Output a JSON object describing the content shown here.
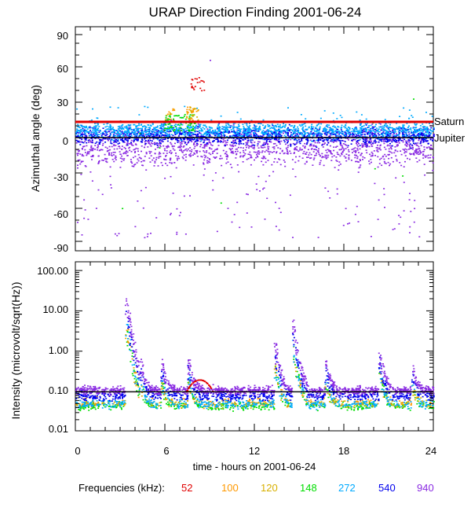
{
  "chart_data": [
    {
      "type": "scatter",
      "title": "URAP Direction Finding  2001-06-24",
      "ylabel": "Azimuthal angle (deg)",
      "ylim": [
        -92,
        95
      ],
      "yticks": [
        90,
        60,
        30,
        0,
        -30,
        -60,
        -90
      ],
      "xlim": [
        0,
        24
      ],
      "reference_lines": [
        {
          "name": "Saturn",
          "y": 15,
          "color": "#e00000"
        },
        {
          "name": "Jupiter",
          "y": 2.5,
          "color": "#000000"
        }
      ],
      "series_summary": [
        {
          "name": "52",
          "typical_range": [
            40,
            52
          ],
          "times": [
            7.8,
            8.6
          ]
        },
        {
          "name": "100",
          "typical_range": [
            15,
            25
          ],
          "times": [
            6.0,
            8.2
          ]
        },
        {
          "name": "120",
          "typical_range": [
            15,
            25
          ],
          "times": [
            6.0,
            8.2
          ]
        },
        {
          "name": "148",
          "typical_range": [
            5,
            18
          ],
          "times": [
            5.8,
            7.8
          ]
        },
        {
          "name": "272",
          "typical_range": [
            0,
            12
          ],
          "times": [
            0,
            24
          ]
        },
        {
          "name": "540",
          "typical_range": [
            -5,
            10
          ],
          "times": [
            0,
            24
          ]
        },
        {
          "name": "940",
          "typical_range": [
            -30,
            10
          ],
          "times": [
            0,
            24
          ]
        }
      ]
    },
    {
      "type": "scatter",
      "ylabel": "Intensity (microvolt/sqrt(Hz))",
      "yscale": "log",
      "ylim": [
        0.01,
        100
      ],
      "ytick_labels": [
        "100.00",
        "10.00",
        "1.00",
        "0.10",
        "0.01"
      ],
      "xlim": [
        0,
        24
      ],
      "xticks": [
        "0",
        "6",
        "12",
        "18",
        "24"
      ],
      "xlabel": "time - hours on 2001-06-24",
      "baseline_levels": [
        {
          "name": "52",
          "level": 0.17
        },
        {
          "name": "100",
          "level": 0.055
        },
        {
          "name": "120",
          "level": 0.05
        },
        {
          "name": "148",
          "level": 0.045
        },
        {
          "name": "272",
          "level": 0.05
        },
        {
          "name": "540",
          "level": 0.08
        },
        {
          "name": "940",
          "level": 0.11
        }
      ],
      "bursts": [
        {
          "time": 3.4,
          "peak": 20
        },
        {
          "time": 4.4,
          "peak": 0.45
        },
        {
          "time": 5.8,
          "peak": 0.45
        },
        {
          "time": 7.6,
          "peak": 0.6
        },
        {
          "time": 13.4,
          "peak": 1.5
        },
        {
          "time": 14.6,
          "peak": 5.0
        },
        {
          "time": 16.8,
          "peak": 0.5
        },
        {
          "time": 20.4,
          "peak": 1.0
        },
        {
          "time": 22.6,
          "peak": 0.35
        }
      ]
    }
  ],
  "legend": {
    "label": "Frequencies (kHz):",
    "entries": [
      {
        "name": "52",
        "color": "#e00000"
      },
      {
        "name": "100",
        "color": "#ff9900"
      },
      {
        "name": "120",
        "color": "#d8b000"
      },
      {
        "name": "148",
        "color": "#00dd00"
      },
      {
        "name": "272",
        "color": "#00aaff"
      },
      {
        "name": "540",
        "color": "#0000ee"
      },
      {
        "name": "940",
        "color": "#8a2be2"
      }
    ]
  },
  "top": {
    "title": "URAP Direction Finding  2001-06-24",
    "ylabel": "Azimuthal angle (deg)",
    "tick_labels": [
      "90",
      "60",
      "30",
      "0",
      "-30",
      "-60",
      "-90"
    ],
    "saturn": "Saturn",
    "jupiter": "Jupiter"
  },
  "bottom": {
    "ylabel": "Intensity (microvolt/sqrt(Hz))",
    "tick_labels": [
      "100.00",
      "10.00",
      "1.00",
      "0.10",
      "0.01"
    ],
    "xtick_labels": [
      "0",
      "6",
      "12",
      "18",
      "24"
    ],
    "xlabel": "time - hours on 2001-06-24"
  }
}
